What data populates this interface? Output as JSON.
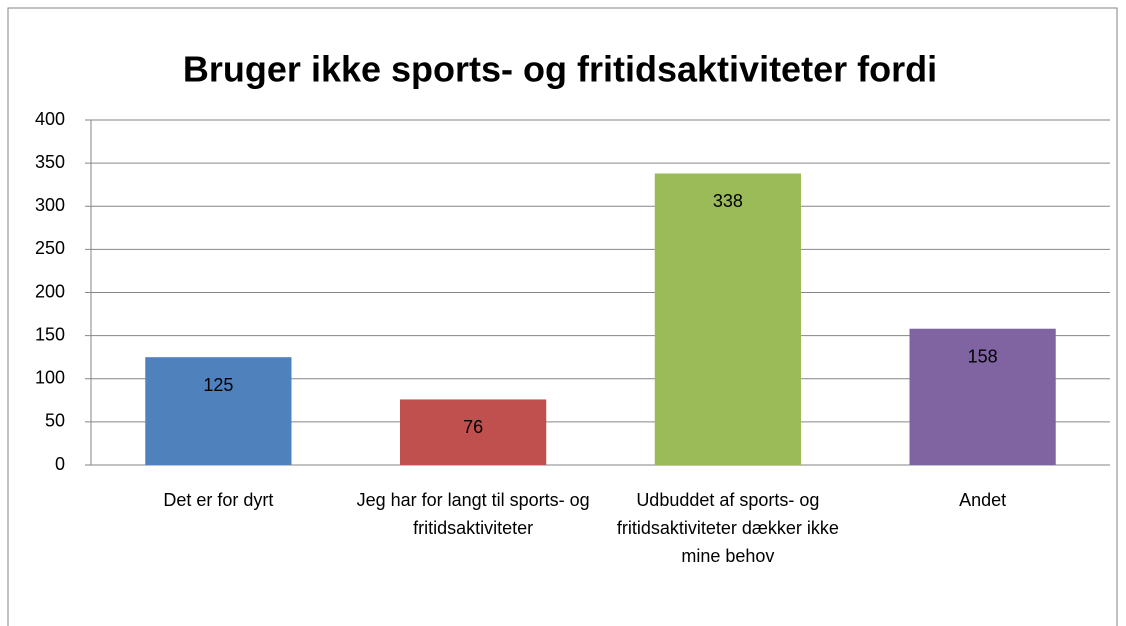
{
  "chart_data": {
    "type": "bar",
    "title": "Bruger ikke sports- og fritidsaktiviteter fordi",
    "categories": [
      "Det er for dyrt",
      "Jeg har for langt til sports- og fritidsaktiviteter",
      "Udbuddet af sports- og fritidsaktiviteter dækker ikke mine behov",
      "Andet"
    ],
    "values": [
      125,
      76,
      338,
      158
    ],
    "colors": [
      "#4f81bd",
      "#c0504d",
      "#9bbb59",
      "#8064a2"
    ],
    "ylim": [
      0,
      400
    ],
    "yticks": [
      0,
      50,
      100,
      150,
      200,
      250,
      300,
      350,
      400
    ],
    "grid": true
  }
}
